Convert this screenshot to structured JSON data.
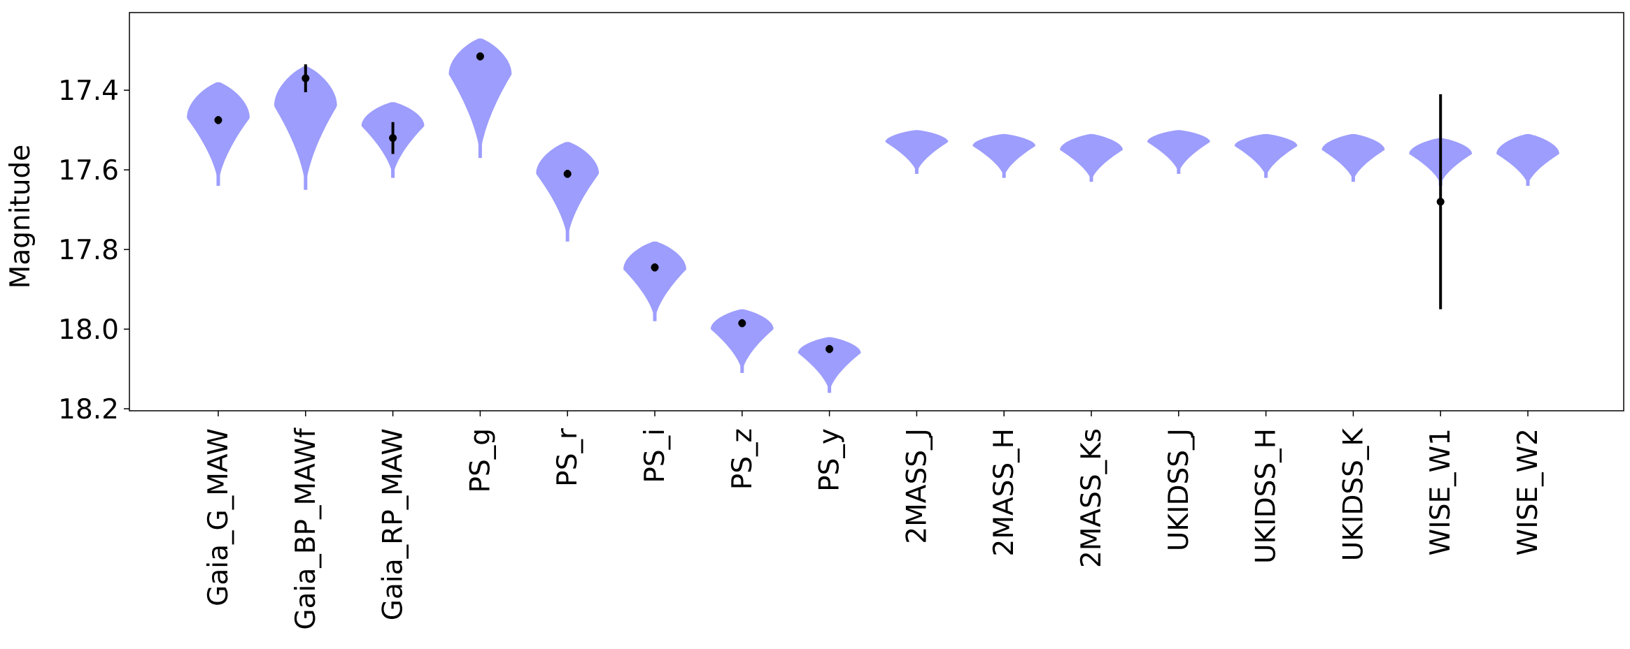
{
  "chart_data": {
    "type": "violin",
    "title": "",
    "xlabel": "",
    "ylabel": "Magnitude",
    "y_inverted": true,
    "ylim": [
      18.205,
      17.205
    ],
    "yticks": [
      17.4,
      17.6,
      17.8,
      18.0,
      18.2
    ],
    "ytick_labels": [
      "17.4",
      "17.6",
      "17.8",
      "18.0",
      "18.2"
    ],
    "grid": false,
    "legend": "none",
    "violin_color": "#9d9dfd",
    "marker_color": "#000000",
    "categories": [
      "Gaia_G_MAW",
      "Gaia_BP_MAWf",
      "Gaia_RP_MAW",
      "PS_g",
      "PS_r",
      "PS_i",
      "PS_z",
      "PS_y",
      "2MASS_J",
      "2MASS_H",
      "2MASS_Ks",
      "UKIDSS_J",
      "UKIDSS_H",
      "UKIDSS_K",
      "WISE_W1",
      "WISE_W2"
    ],
    "violins": [
      {
        "min": 17.38,
        "max": 17.64,
        "peak": 17.47,
        "half_width": 0.27
      },
      {
        "min": 17.34,
        "max": 17.65,
        "peak": 17.44,
        "half_width": 0.27
      },
      {
        "min": 17.43,
        "max": 17.62,
        "peak": 17.49,
        "half_width": 0.27
      },
      {
        "min": 17.27,
        "max": 17.57,
        "peak": 17.36,
        "half_width": 0.27
      },
      {
        "min": 17.53,
        "max": 17.78,
        "peak": 17.61,
        "half_width": 0.27
      },
      {
        "min": 17.78,
        "max": 17.98,
        "peak": 17.85,
        "half_width": 0.27
      },
      {
        "min": 17.95,
        "max": 18.11,
        "peak": 18.0,
        "half_width": 0.27
      },
      {
        "min": 18.02,
        "max": 18.16,
        "peak": 18.06,
        "half_width": 0.27
      },
      {
        "min": 17.5,
        "max": 17.61,
        "peak": 17.53,
        "half_width": 0.27
      },
      {
        "min": 17.51,
        "max": 17.62,
        "peak": 17.54,
        "half_width": 0.27
      },
      {
        "min": 17.51,
        "max": 17.63,
        "peak": 17.55,
        "half_width": 0.27
      },
      {
        "min": 17.5,
        "max": 17.61,
        "peak": 17.53,
        "half_width": 0.27
      },
      {
        "min": 17.51,
        "max": 17.62,
        "peak": 17.54,
        "half_width": 0.27
      },
      {
        "min": 17.51,
        "max": 17.63,
        "peak": 17.55,
        "half_width": 0.27
      },
      {
        "min": 17.52,
        "max": 17.64,
        "peak": 17.56,
        "half_width": 0.27
      },
      {
        "min": 17.51,
        "max": 17.64,
        "peak": 17.56,
        "half_width": 0.27
      }
    ],
    "observations": [
      {
        "value": 17.475,
        "err_low": 17.465,
        "err_high": 17.485
      },
      {
        "value": 17.37,
        "err_low": 17.335,
        "err_high": 17.405
      },
      {
        "value": 17.52,
        "err_low": 17.48,
        "err_high": 17.56
      },
      {
        "value": 17.315,
        "err_low": 17.305,
        "err_high": 17.325
      },
      {
        "value": 17.61,
        "err_low": 17.6,
        "err_high": 17.62
      },
      {
        "value": 17.845,
        "err_low": 17.835,
        "err_high": 17.855
      },
      {
        "value": 17.985,
        "err_low": 17.975,
        "err_high": 17.995
      },
      {
        "value": 18.05,
        "err_low": 18.04,
        "err_high": 18.06
      },
      null,
      null,
      null,
      null,
      null,
      null,
      {
        "value": 17.68,
        "err_low": 17.41,
        "err_high": 17.95
      },
      null
    ]
  }
}
